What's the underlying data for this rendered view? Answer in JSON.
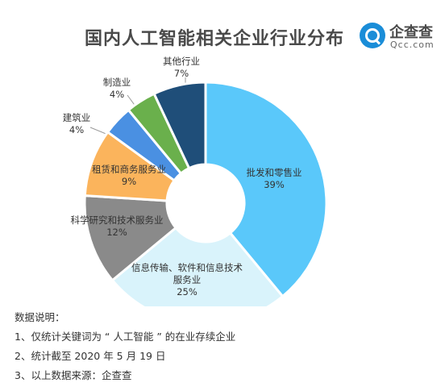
{
  "header": {
    "title": "国内人工智能相关企业行业分布",
    "logo_cn": "企查查",
    "logo_en": "Qcc.com"
  },
  "chart_data": {
    "type": "pie",
    "title": "国内人工智能相关企业行业分布",
    "donut": true,
    "slices": [
      {
        "label": "批发和零售业",
        "value": 39,
        "value_label": "39%",
        "color": "#5ac8fa"
      },
      {
        "label": "信息传输、软件和信息技术服务业",
        "value": 25,
        "value_label": "25%",
        "color": "#d9f3fb"
      },
      {
        "label": "科学研究和技术服务业",
        "value": 12,
        "value_label": "12%",
        "color": "#8a8a8a"
      },
      {
        "label": "租赁和商务服务业",
        "value": 9,
        "value_label": "9%",
        "color": "#fbb45c"
      },
      {
        "label": "建筑业",
        "value": 4,
        "value_label": "4%",
        "color": "#4a90e2"
      },
      {
        "label": "制造业",
        "value": 4,
        "value_label": "4%",
        "color": "#6ab04c"
      },
      {
        "label": "其他行业",
        "value": 7,
        "value_label": "7%",
        "color": "#1f4e79"
      }
    ]
  },
  "notes": {
    "heading": "数据说明：",
    "lines": [
      "1、仅统计关键词为 “ 人工智能 ” 的在业存续企业",
      "2、统计截至 2020 年 5 月 19 日",
      "3、以上数据来源：企查查"
    ]
  }
}
